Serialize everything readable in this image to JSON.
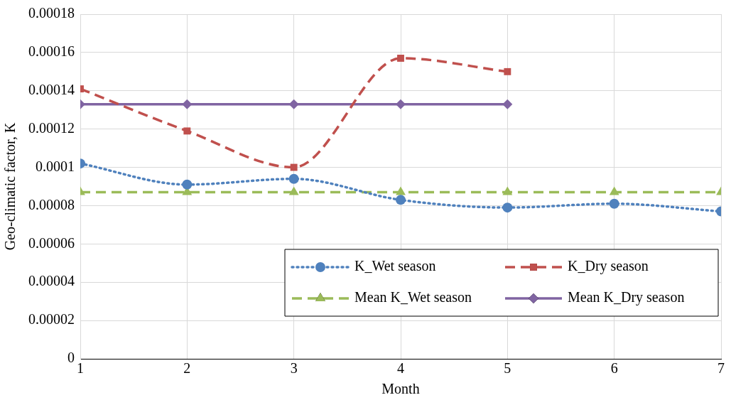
{
  "chart_data": {
    "type": "line",
    "xlabel": "Month",
    "ylabel": "Geo-climatic factor, K",
    "xlim": [
      1,
      7
    ],
    "xticks": [
      1,
      2,
      3,
      4,
      5,
      6,
      7
    ],
    "ylim": [
      0,
      0.00018
    ],
    "yticks": [
      0,
      {
        "value": 2e-05,
        "label": "0.00002"
      },
      {
        "value": 4e-05,
        "label": "0.00004"
      },
      {
        "value": 6e-05,
        "label": "0.00006"
      },
      {
        "value": 8e-05,
        "label": "0.00008"
      },
      0.0001,
      0.00012,
      0.00014,
      0.00016,
      0.00018
    ],
    "grid": true,
    "legend": "bottom right",
    "series": [
      {
        "name": "K_Wet season",
        "color": "#4f81bd",
        "marker": "circle",
        "line_style": "dotted",
        "x": [
          1,
          2,
          3,
          4,
          5,
          6,
          7
        ],
        "values": [
          0.000102,
          9.1e-05,
          9.4e-05,
          8.3e-05,
          7.9e-05,
          8.1e-05,
          7.7e-05
        ]
      },
      {
        "name": "K_Dry season",
        "color": "#c0504d",
        "marker": "square",
        "line_style": "dashed",
        "x": [
          1,
          2,
          3,
          4,
          5
        ],
        "values": [
          0.000141,
          0.000119,
          0.0001,
          0.000157,
          0.00015
        ]
      },
      {
        "name": "Mean K_Wet season",
        "color": "#9bbb59",
        "marker": "triangle",
        "line_style": "dashed",
        "x": [
          1,
          2,
          3,
          4,
          5,
          6,
          7
        ],
        "values": [
          8.7e-05,
          8.7e-05,
          8.7e-05,
          8.7e-05,
          8.7e-05,
          8.7e-05,
          8.7e-05
        ]
      },
      {
        "name": "Mean K_Dry season",
        "color": "#8064a2",
        "marker": "diamond",
        "line_style": "solid",
        "x": [
          1,
          2,
          3,
          4,
          5
        ],
        "values": [
          0.000133,
          0.000133,
          0.000133,
          0.000133,
          0.000133
        ]
      }
    ]
  }
}
